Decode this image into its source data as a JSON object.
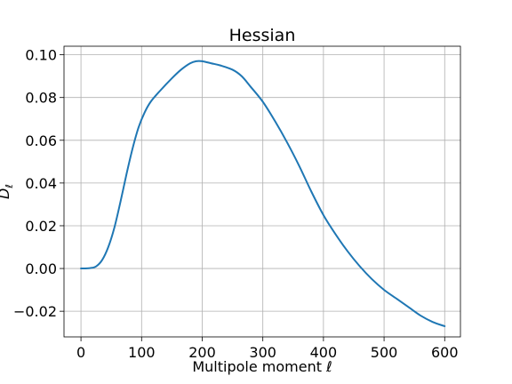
{
  "chart_data": {
    "type": "line",
    "title": "Hessian",
    "xlabel": "Multipole moment ℓ",
    "ylabel": "D_ℓ",
    "xlim": [
      -28,
      626
    ],
    "ylim": [
      -0.032,
      0.104
    ],
    "grid": true,
    "xticks": [
      0,
      100,
      200,
      300,
      400,
      500,
      600
    ],
    "xtick_labels": [
      "0",
      "100",
      "200",
      "300",
      "400",
      "500",
      "600"
    ],
    "yticks": [
      -0.02,
      0.0,
      0.02,
      0.04,
      0.06,
      0.08,
      0.1
    ],
    "ytick_labels": [
      "−0.02",
      "0.00",
      "0.02",
      "0.04",
      "0.06",
      "0.08",
      "0.10"
    ],
    "series": [
      {
        "color": "#1f77b4",
        "x": [
          0,
          15,
          25,
          35,
          45,
          55,
          65,
          75,
          85,
          95,
          105,
          115,
          130,
          150,
          165,
          180,
          190,
          200,
          215,
          230,
          250,
          265,
          280,
          300,
          320,
          340,
          360,
          380,
          400,
          420,
          440,
          460,
          480,
          500,
          520,
          540,
          560,
          580,
          600
        ],
        "y": [
          0.0,
          0.0002,
          0.001,
          0.004,
          0.01,
          0.019,
          0.031,
          0.044,
          0.056,
          0.066,
          0.073,
          0.078,
          0.083,
          0.089,
          0.093,
          0.096,
          0.097,
          0.097,
          0.096,
          0.095,
          0.093,
          0.09,
          0.085,
          0.078,
          0.069,
          0.059,
          0.048,
          0.036,
          0.025,
          0.016,
          0.008,
          0.001,
          -0.005,
          -0.01,
          -0.014,
          -0.018,
          -0.022,
          -0.025,
          -0.027
        ]
      }
    ]
  }
}
